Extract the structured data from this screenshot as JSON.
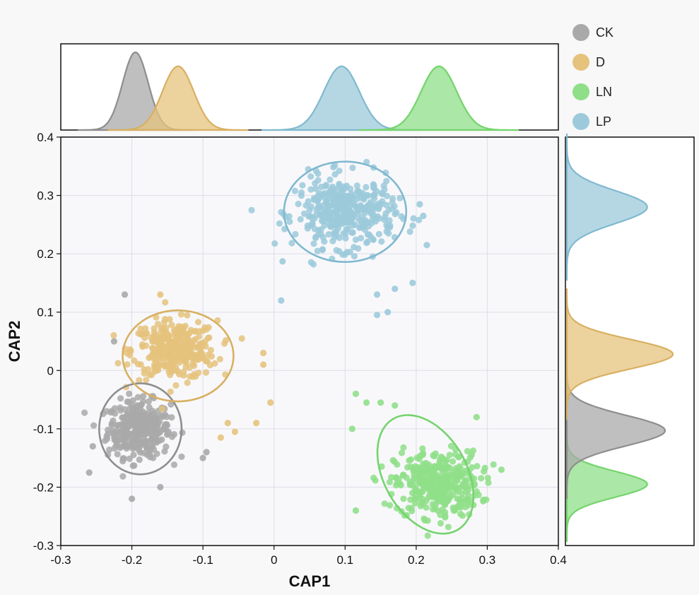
{
  "chart_data": {
    "type": "scatter",
    "title": "",
    "xlabel": "CAP1",
    "ylabel": "CAP2",
    "xlim": [
      -0.3,
      0.4
    ],
    "ylim": [
      -0.3,
      0.4
    ],
    "xticks": [
      "-0.3",
      "-0.2",
      "-0.1",
      "0",
      "0.1",
      "0.2",
      "0.3",
      "0.4"
    ],
    "yticks": [
      "-0.3",
      "-0.2",
      "-0.1",
      "0",
      "0.1",
      "0.2",
      "0.3",
      "0.4"
    ],
    "xtick_values": [
      -0.3,
      -0.2,
      -0.1,
      0,
      0.1,
      0.2,
      0.3,
      0.4
    ],
    "ytick_values": [
      -0.3,
      -0.2,
      -0.1,
      0,
      0.1,
      0.2,
      0.3,
      0.4
    ],
    "grid": true,
    "legend_position": "top-right",
    "marginal_density": "top and right",
    "series": [
      {
        "name": "CK",
        "color": "#a9a9a9",
        "stroke": "#8e8e8e",
        "center": [
          -0.19,
          -0.1
        ],
        "spread": [
          0.022,
          0.024
        ],
        "n": 340,
        "ellipse": {
          "cx": -0.188,
          "cy": -0.1,
          "rx": 0.058,
          "ry": 0.078,
          "angle": 0
        },
        "outliers": [
          [
            -0.21,
            0.13
          ],
          [
            -0.225,
            0.05
          ],
          [
            -0.255,
            -0.13
          ],
          [
            -0.26,
            -0.175
          ],
          [
            -0.2,
            -0.22
          ],
          [
            -0.16,
            -0.2
          ],
          [
            -0.1,
            -0.15
          ],
          [
            -0.095,
            -0.14
          ]
        ],
        "density_x": {
          "mean": -0.195,
          "sd": 0.018,
          "peak": 1.0
        },
        "density_y": {
          "mean": -0.103,
          "sd": 0.026,
          "peak": 0.88
        }
      },
      {
        "name": "D",
        "color": "#e5c37c",
        "stroke": "#d8b062",
        "center": [
          -0.14,
          0.035
        ],
        "spread": [
          0.03,
          0.025
        ],
        "n": 320,
        "ellipse": {
          "cx": -0.135,
          "cy": 0.025,
          "rx": 0.078,
          "ry": 0.078,
          "angle": 0
        },
        "outliers": [
          [
            -0.16,
            0.13
          ],
          [
            -0.015,
            0.03
          ],
          [
            -0.015,
            0.01
          ],
          [
            -0.005,
            -0.055
          ],
          [
            -0.075,
            -0.115
          ],
          [
            -0.065,
            -0.09
          ],
          [
            -0.055,
            -0.105
          ],
          [
            -0.025,
            -0.09
          ]
        ],
        "density_x": {
          "mean": -0.135,
          "sd": 0.022,
          "peak": 0.82
        },
        "density_y": {
          "mean": 0.028,
          "sd": 0.025,
          "peak": 0.95
        }
      },
      {
        "name": "LN",
        "color": "#8fdf88",
        "stroke": "#74d46c",
        "center": [
          0.23,
          -0.195
        ],
        "spread": [
          0.03,
          0.028
        ],
        "n": 360,
        "ellipse": {
          "cx": 0.213,
          "cy": -0.178,
          "rx": 0.058,
          "ry": 0.11,
          "angle": -30
        },
        "outliers": [
          [
            0.115,
            -0.04
          ],
          [
            0.13,
            -0.055
          ],
          [
            0.15,
            -0.055
          ],
          [
            0.11,
            -0.1
          ],
          [
            0.115,
            -0.24
          ],
          [
            0.32,
            -0.17
          ],
          [
            0.285,
            -0.08
          ],
          [
            0.17,
            -0.06
          ]
        ],
        "density_x": {
          "mean": 0.232,
          "sd": 0.025,
          "peak": 0.82
        },
        "density_y": {
          "mean": -0.195,
          "sd": 0.022,
          "peak": 0.72
        }
      },
      {
        "name": "LP",
        "color": "#9ccadb",
        "stroke": "#80b9cf",
        "center": [
          0.1,
          0.27
        ],
        "spread": [
          0.035,
          0.03
        ],
        "n": 380,
        "ellipse": {
          "cx": 0.1,
          "cy": 0.272,
          "rx": 0.086,
          "ry": 0.086,
          "angle": 0
        },
        "outliers": [
          [
            0.01,
            0.12
          ],
          [
            0.012,
            0.187
          ],
          [
            0.16,
            0.1
          ],
          [
            0.145,
            0.095
          ],
          [
            0.17,
            0.14
          ],
          [
            0.145,
            0.13
          ],
          [
            0.195,
            0.15
          ],
          [
            0.215,
            0.215
          ],
          [
            0.21,
            0.265
          ],
          [
            0.205,
            0.285
          ]
        ],
        "density_x": {
          "mean": 0.095,
          "sd": 0.025,
          "peak": 0.82
        },
        "density_y": {
          "mean": 0.28,
          "sd": 0.028,
          "peak": 0.72
        }
      }
    ]
  }
}
